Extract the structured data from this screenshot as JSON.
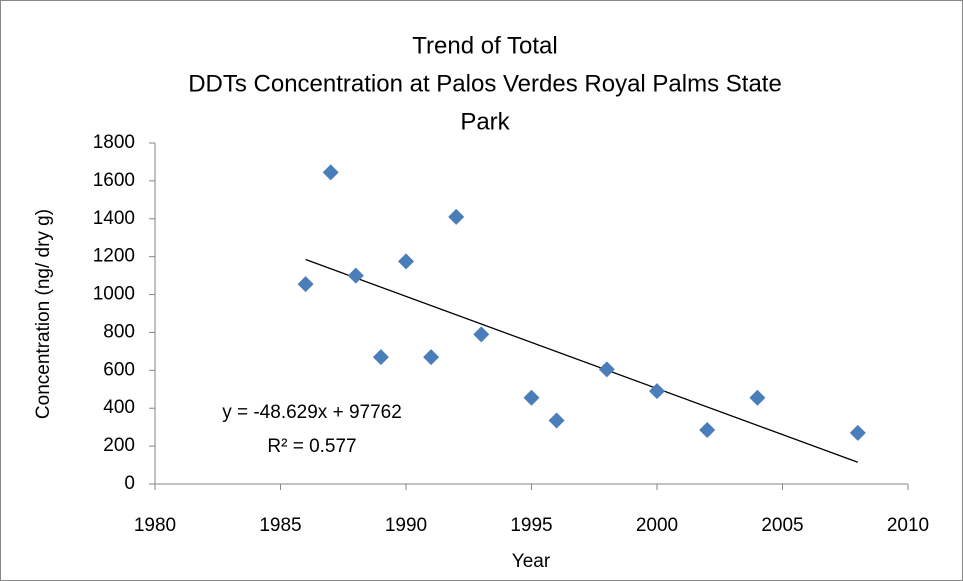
{
  "chart_data": {
    "type": "scatter",
    "title": [
      "Trend of Total",
      "DDTs Concentration at Palos Verdes Royal Palms State",
      "Park"
    ],
    "x_label": "Year",
    "y_label": "Concentration (ng/ dry g)",
    "x": [
      1986,
      1987,
      1988,
      1989,
      1990,
      1991,
      1992,
      1993,
      1995,
      1996,
      1998,
      2000,
      2002,
      2004,
      2008
    ],
    "values": [
      1055,
      1645,
      1100,
      670,
      1175,
      670,
      1410,
      790,
      455,
      335,
      605,
      490,
      285,
      455,
      270
    ],
    "color": "#4a7ebb",
    "xlim": [
      1980,
      2010
    ],
    "xticks": [
      1980,
      1985,
      1990,
      1995,
      2000,
      2005,
      2010
    ],
    "ylim": [
      0,
      1800
    ],
    "yticks": [
      0,
      200,
      400,
      600,
      800,
      1000,
      1200,
      1400,
      1600,
      1800
    ],
    "grid": false,
    "trendline": {
      "slope": -48.629,
      "intercept": 97762,
      "color": "#000000"
    },
    "annotations": [
      "y = -48.629x + 97762",
      "R² = 0.577"
    ]
  }
}
